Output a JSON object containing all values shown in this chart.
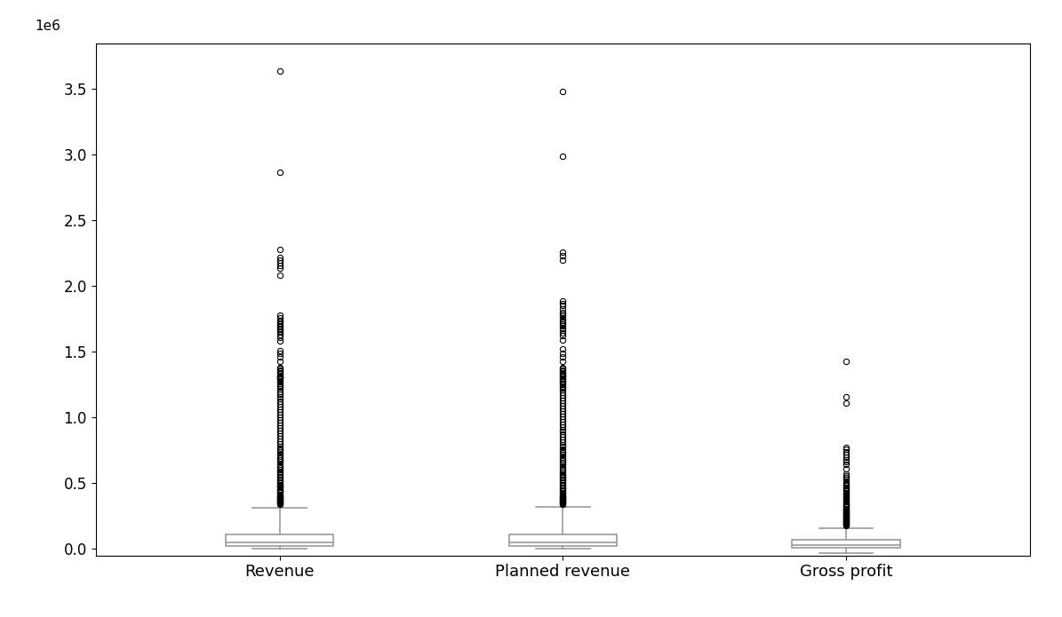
{
  "categories": [
    "Revenue",
    "Planned revenue",
    "Gross profit"
  ],
  "box_stats": {
    "Revenue": {
      "whislo": 0,
      "q1": 18000,
      "med": 50000,
      "q3": 110000,
      "whishi": 315000,
      "fliers_approx": [
        340000,
        345000,
        350000,
        355000,
        360000,
        365000,
        370000,
        375000,
        380000,
        385000,
        390000,
        395000,
        400000,
        408000,
        416000,
        424000,
        432000,
        440000,
        448000,
        456000,
        464000,
        472000,
        480000,
        490000,
        500000,
        510000,
        520000,
        530000,
        540000,
        550000,
        560000,
        570000,
        580000,
        590000,
        600000,
        615000,
        630000,
        645000,
        660000,
        675000,
        690000,
        705000,
        720000,
        735000,
        750000,
        765000,
        780000,
        800000,
        820000,
        840000,
        860000,
        880000,
        900000,
        920000,
        940000,
        960000,
        980000,
        1000000,
        1020000,
        1040000,
        1060000,
        1080000,
        1100000,
        1120000,
        1140000,
        1160000,
        1180000,
        1200000,
        1215000,
        1230000,
        1245000,
        1260000,
        1270000,
        1280000,
        1290000,
        1300000,
        1305000,
        1310000,
        1315000,
        1320000,
        1330000,
        1340000,
        1350000,
        1360000,
        1370000,
        1380000,
        1430000,
        1460000,
        1490000,
        1510000,
        1580000,
        1610000,
        1630000,
        1650000,
        1660000,
        1670000,
        1680000,
        1690000,
        1700000,
        1710000,
        1720000,
        1730000,
        1740000,
        1760000,
        1780000,
        2080000,
        2140000,
        2160000,
        2180000,
        2200000,
        2220000,
        2280000,
        2870000,
        3640000
      ]
    },
    "Planned revenue": {
      "whislo": 0,
      "q1": 18000,
      "med": 50000,
      "q3": 110000,
      "whishi": 320000,
      "fliers_approx": [
        340000,
        345000,
        350000,
        355000,
        360000,
        365000,
        370000,
        375000,
        380000,
        385000,
        390000,
        395000,
        400000,
        410000,
        420000,
        430000,
        440000,
        450000,
        460000,
        470000,
        480000,
        490000,
        500000,
        510000,
        520000,
        530000,
        540000,
        550000,
        560000,
        570000,
        580000,
        595000,
        610000,
        625000,
        640000,
        655000,
        670000,
        685000,
        700000,
        715000,
        730000,
        745000,
        760000,
        775000,
        790000,
        810000,
        830000,
        850000,
        870000,
        890000,
        910000,
        930000,
        950000,
        970000,
        990000,
        1010000,
        1030000,
        1050000,
        1070000,
        1090000,
        1110000,
        1130000,
        1150000,
        1170000,
        1190000,
        1210000,
        1225000,
        1240000,
        1250000,
        1260000,
        1270000,
        1280000,
        1290000,
        1300000,
        1310000,
        1315000,
        1320000,
        1325000,
        1330000,
        1340000,
        1350000,
        1360000,
        1370000,
        1380000,
        1430000,
        1460000,
        1490000,
        1520000,
        1590000,
        1620000,
        1645000,
        1665000,
        1680000,
        1695000,
        1710000,
        1725000,
        1740000,
        1755000,
        1770000,
        1785000,
        1800000,
        1825000,
        1850000,
        1870000,
        1890000,
        2200000,
        2230000,
        2260000,
        2990000,
        3480000
      ]
    },
    "Gross profit": {
      "whislo": -30000,
      "q1": 5000,
      "med": 25000,
      "q3": 65000,
      "whishi": 155000,
      "fliers_approx": [
        175000,
        180000,
        185000,
        190000,
        195000,
        200000,
        205000,
        210000,
        215000,
        220000,
        225000,
        230000,
        235000,
        240000,
        245000,
        250000,
        255000,
        260000,
        265000,
        270000,
        275000,
        280000,
        285000,
        290000,
        295000,
        300000,
        308000,
        316000,
        324000,
        332000,
        340000,
        348000,
        356000,
        364000,
        372000,
        380000,
        390000,
        400000,
        410000,
        420000,
        430000,
        440000,
        450000,
        460000,
        470000,
        478000,
        486000,
        494000,
        510000,
        525000,
        540000,
        555000,
        570000,
        610000,
        640000,
        660000,
        680000,
        700000,
        720000,
        740000,
        760000,
        770000,
        1110000,
        1160000,
        1430000
      ]
    }
  },
  "ylim": [
    -50000,
    3850000
  ],
  "figsize": [
    11.95,
    6.95
  ],
  "dpi": 100,
  "box_facecolor": "white",
  "box_edgecolor": "#999999",
  "whisker_color": "#999999",
  "median_color": "#999999",
  "flier_color": "black",
  "background_color": "white",
  "ytick_fontsize": 12,
  "xtick_fontsize": 13
}
